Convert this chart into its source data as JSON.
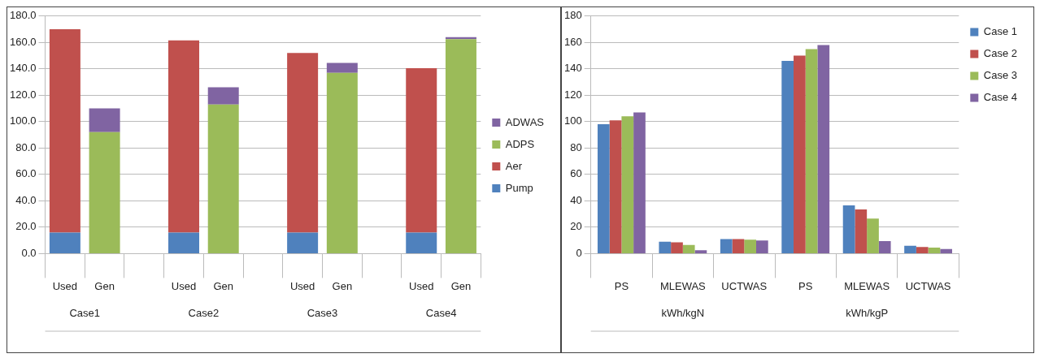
{
  "chart_data": [
    {
      "type": "bar",
      "stacked": true,
      "categories": [
        "Used",
        "Gen",
        null,
        "Used",
        "Gen",
        null,
        "Used",
        "Gen",
        null,
        "Used",
        "Gen"
      ],
      "series": [
        {
          "name": "Pump",
          "color": "#4f81bd",
          "values": [
            16,
            null,
            null,
            16,
            null,
            null,
            16,
            null,
            null,
            16,
            null
          ]
        },
        {
          "name": "Aer",
          "color": "#c0504d",
          "values": [
            154,
            null,
            null,
            145.5,
            null,
            null,
            136,
            null,
            null,
            124.5,
            null
          ]
        },
        {
          "name": "ADPS",
          "color": "#9bbb59",
          "values": [
            null,
            92,
            null,
            null,
            113,
            null,
            null,
            137,
            null,
            null,
            162.5
          ]
        },
        {
          "name": "ADWAS",
          "color": "#8064a2",
          "values": [
            null,
            18,
            null,
            null,
            13,
            null,
            null,
            7.5,
            null,
            null,
            1.5
          ]
        }
      ],
      "ylim": [
        0,
        180
      ],
      "yticks": [
        {
          "value": 0,
          "label": "0.0"
        },
        {
          "value": 20,
          "label": "20.0"
        },
        {
          "value": 40,
          "label": "40.0"
        },
        {
          "value": 60,
          "label": "60.0"
        },
        {
          "value": 80,
          "label": "80.0"
        },
        {
          "value": 100,
          "label": "100.0"
        },
        {
          "value": 120,
          "label": "120.0"
        },
        {
          "value": 140,
          "label": "140.0"
        },
        {
          "value": 160,
          "label": "160.0"
        },
        {
          "value": 180,
          "label": "180.0"
        }
      ],
      "grid": "y",
      "legend": "right",
      "annotations": [
        "Case1",
        "Case2",
        "Case3",
        "Case4"
      ]
    },
    {
      "type": "bar",
      "categories": [
        "PS",
        "MLEWAS",
        "UCTWAS",
        "PS",
        "MLEWAS",
        "UCTWAS"
      ],
      "series": [
        {
          "name": "Case 1",
          "color": "#4f81bd",
          "values": [
            98,
            9,
            11,
            146,
            36.5,
            6
          ]
        },
        {
          "name": "Case 2",
          "color": "#c0504d",
          "values": [
            101,
            8.5,
            11,
            150,
            33.5,
            5
          ]
        },
        {
          "name": "Case 3",
          "color": "#9bbb59",
          "values": [
            104,
            6.5,
            10.5,
            155,
            26.5,
            4.5
          ]
        },
        {
          "name": "Case 4",
          "color": "#8064a2",
          "values": [
            107,
            2.5,
            10,
            158,
            9.5,
            3.5
          ]
        }
      ],
      "ylim": [
        0,
        180
      ],
      "yticks": [
        0,
        20,
        40,
        60,
        80,
        100,
        120,
        140,
        160,
        180
      ],
      "grid": "y",
      "legend": "top right",
      "annotations": [
        "kWh/kgN",
        "kWh/kgP"
      ]
    }
  ]
}
